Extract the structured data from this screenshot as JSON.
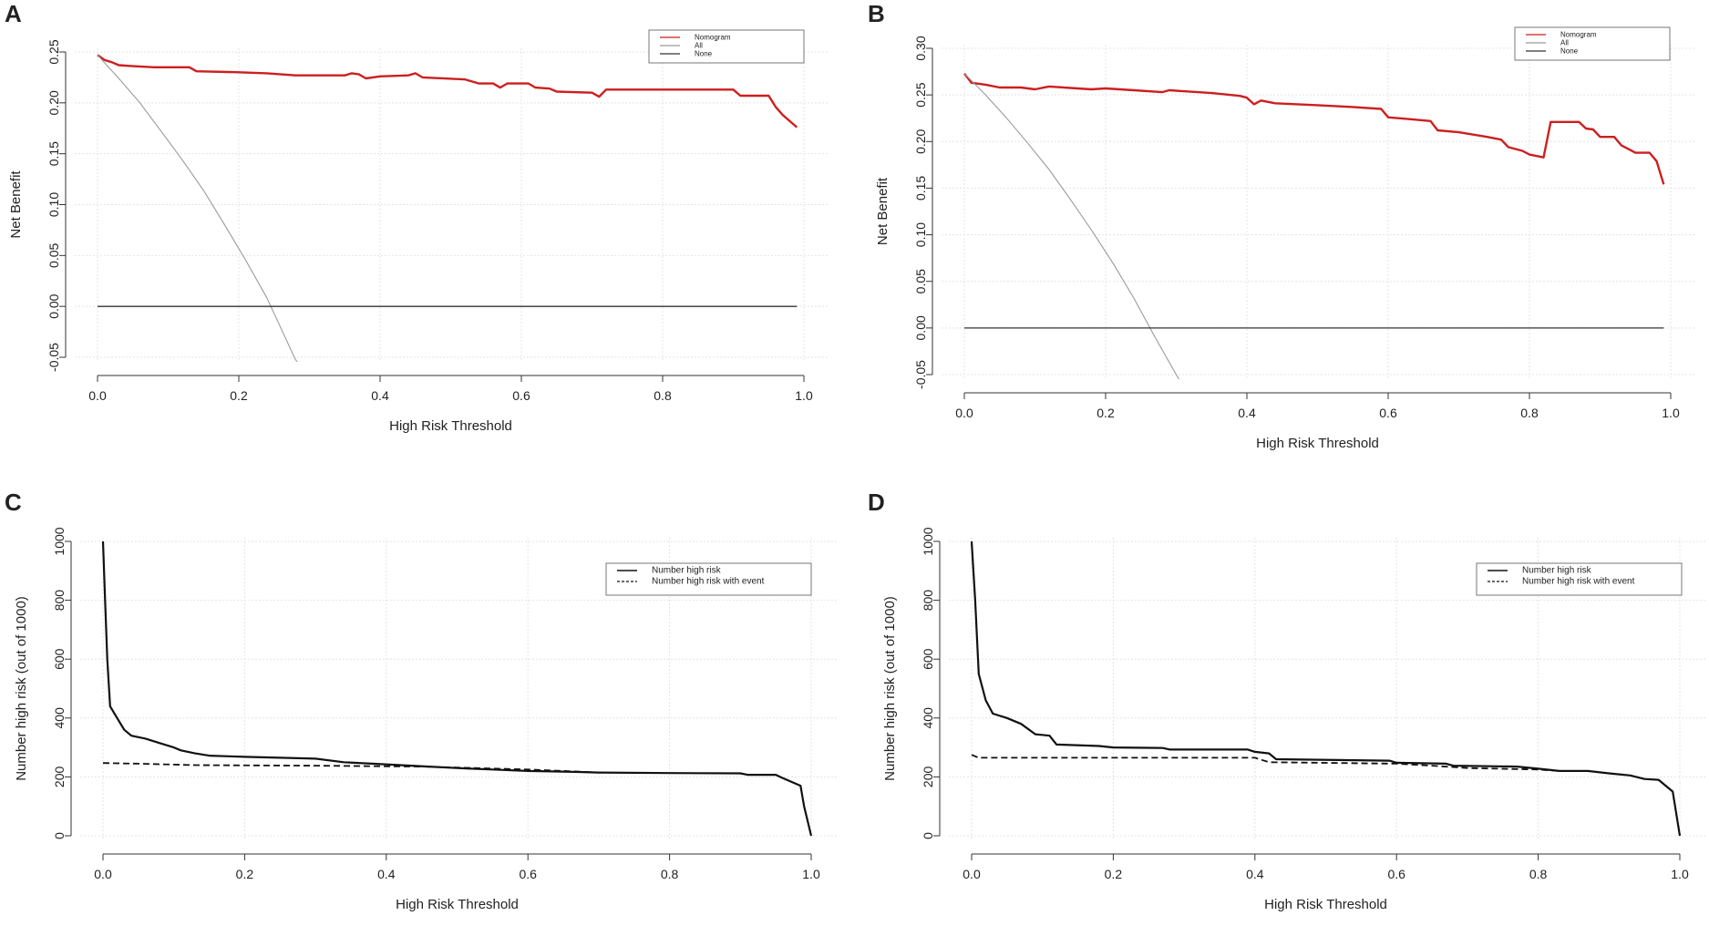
{
  "colors": {
    "nomogram": "#cc1f1f",
    "all": "#9a9a9a",
    "none": "#333333",
    "axis": "#333333",
    "grid": "#e4e4e4",
    "black": "#111111"
  },
  "chart_data": [
    {
      "panel": "A",
      "type": "line",
      "xlabel": "High Risk Threshold",
      "ylabel": "Net Benefit",
      "xlim": [
        0,
        1
      ],
      "ylim": [
        -0.05,
        0.25
      ],
      "xticks": [
        "0.0",
        "0.2",
        "0.4",
        "0.6",
        "0.8",
        "1.0"
      ],
      "yticks": [
        "-0.05",
        "0.00",
        "0.05",
        "0.10",
        "0.15",
        "0.20",
        "0.25"
      ],
      "legend": {
        "position": "top-right",
        "entries": [
          "Nomogram",
          "All",
          "None"
        ]
      },
      "series": [
        {
          "name": "Nomogram",
          "color": "red",
          "points": [
            [
              0,
              0.247
            ],
            [
              0.01,
              0.242
            ],
            [
              0.02,
              0.24
            ],
            [
              0.03,
              0.237
            ],
            [
              0.05,
              0.236
            ],
            [
              0.08,
              0.235
            ],
            [
              0.13,
              0.235
            ],
            [
              0.14,
              0.231
            ],
            [
              0.2,
              0.23
            ],
            [
              0.24,
              0.229
            ],
            [
              0.28,
              0.227
            ],
            [
              0.35,
              0.227
            ],
            [
              0.36,
              0.229
            ],
            [
              0.37,
              0.228
            ],
            [
              0.38,
              0.224
            ],
            [
              0.4,
              0.226
            ],
            [
              0.44,
              0.227
            ],
            [
              0.45,
              0.229
            ],
            [
              0.46,
              0.225
            ],
            [
              0.52,
              0.223
            ],
            [
              0.53,
              0.221
            ],
            [
              0.54,
              0.219
            ],
            [
              0.56,
              0.219
            ],
            [
              0.57,
              0.215
            ],
            [
              0.58,
              0.219
            ],
            [
              0.61,
              0.219
            ],
            [
              0.62,
              0.215
            ],
            [
              0.64,
              0.214
            ],
            [
              0.65,
              0.211
            ],
            [
              0.7,
              0.21
            ],
            [
              0.71,
              0.206
            ],
            [
              0.72,
              0.213
            ],
            [
              0.9,
              0.213
            ],
            [
              0.91,
              0.207
            ],
            [
              0.95,
              0.207
            ],
            [
              0.96,
              0.196
            ],
            [
              0.97,
              0.188
            ],
            [
              0.99,
              0.176
            ]
          ]
        },
        {
          "name": "All",
          "color": "gray",
          "points": [
            [
              0,
              0.247
            ],
            [
              0.03,
              0.224
            ],
            [
              0.06,
              0.2
            ],
            [
              0.09,
              0.172
            ],
            [
              0.12,
              0.144
            ],
            [
              0.15,
              0.114
            ],
            [
              0.18,
              0.08
            ],
            [
              0.21,
              0.045
            ],
            [
              0.24,
              0.008
            ],
            [
              0.26,
              -0.022
            ],
            [
              0.28,
              -0.052
            ],
            [
              0.29,
              -0.062
            ]
          ]
        },
        {
          "name": "None",
          "color": "black",
          "points": [
            [
              0,
              0
            ],
            [
              0.99,
              0
            ]
          ]
        }
      ]
    },
    {
      "panel": "B",
      "type": "line",
      "xlabel": "High Risk Threshold",
      "ylabel": "Net Benefit",
      "xlim": [
        0,
        1
      ],
      "ylim": [
        -0.05,
        0.3
      ],
      "xticks": [
        "0.0",
        "0.2",
        "0.4",
        "0.6",
        "0.8",
        "1.0"
      ],
      "yticks": [
        "-0.05",
        "0.00",
        "0.05",
        "0.10",
        "0.15",
        "0.20",
        "0.25",
        "0.30"
      ],
      "legend": {
        "position": "top-right",
        "entries": [
          "Nomogram",
          "All",
          "None"
        ]
      },
      "series": [
        {
          "name": "Nomogram",
          "color": "red",
          "points": [
            [
              0,
              0.273
            ],
            [
              0.01,
              0.263
            ],
            [
              0.03,
              0.261
            ],
            [
              0.05,
              0.258
            ],
            [
              0.08,
              0.258
            ],
            [
              0.1,
              0.256
            ],
            [
              0.12,
              0.259
            ],
            [
              0.16,
              0.257
            ],
            [
              0.18,
              0.256
            ],
            [
              0.2,
              0.257
            ],
            [
              0.24,
              0.255
            ],
            [
              0.28,
              0.253
            ],
            [
              0.29,
              0.255
            ],
            [
              0.31,
              0.254
            ],
            [
              0.35,
              0.252
            ],
            [
              0.39,
              0.249
            ],
            [
              0.4,
              0.247
            ],
            [
              0.41,
              0.24
            ],
            [
              0.42,
              0.244
            ],
            [
              0.44,
              0.241
            ],
            [
              0.5,
              0.239
            ],
            [
              0.55,
              0.237
            ],
            [
              0.59,
              0.235
            ],
            [
              0.6,
              0.226
            ],
            [
              0.63,
              0.224
            ],
            [
              0.66,
              0.222
            ],
            [
              0.67,
              0.212
            ],
            [
              0.7,
              0.21
            ],
            [
              0.74,
              0.205
            ],
            [
              0.76,
              0.202
            ],
            [
              0.77,
              0.194
            ],
            [
              0.79,
              0.19
            ],
            [
              0.8,
              0.186
            ],
            [
              0.82,
              0.183
            ],
            [
              0.83,
              0.221
            ],
            [
              0.87,
              0.221
            ],
            [
              0.88,
              0.214
            ],
            [
              0.89,
              0.213
            ],
            [
              0.9,
              0.205
            ],
            [
              0.92,
              0.205
            ],
            [
              0.93,
              0.196
            ],
            [
              0.95,
              0.188
            ],
            [
              0.97,
              0.188
            ],
            [
              0.98,
              0.179
            ],
            [
              0.99,
              0.154
            ]
          ]
        },
        {
          "name": "All",
          "color": "gray",
          "points": [
            [
              0,
              0.273
            ],
            [
              0.03,
              0.25
            ],
            [
              0.06,
              0.225
            ],
            [
              0.09,
              0.198
            ],
            [
              0.12,
              0.17
            ],
            [
              0.15,
              0.138
            ],
            [
              0.18,
              0.105
            ],
            [
              0.21,
              0.07
            ],
            [
              0.24,
              0.032
            ],
            [
              0.27,
              -0.01
            ],
            [
              0.3,
              -0.05
            ],
            [
              0.315,
              -0.07
            ]
          ]
        },
        {
          "name": "None",
          "color": "black",
          "points": [
            [
              0,
              0
            ],
            [
              0.99,
              0
            ]
          ]
        }
      ]
    },
    {
      "panel": "C",
      "type": "line",
      "xlabel": "High Risk Threshold",
      "ylabel": "Number high risk (out of 1000)",
      "xlim": [
        0,
        1
      ],
      "ylim": [
        0,
        1000
      ],
      "xticks": [
        "0.0",
        "0.2",
        "0.4",
        "0.6",
        "0.8",
        "1.0"
      ],
      "yticks": [
        "0",
        "200",
        "400",
        "600",
        "800",
        "1000"
      ],
      "legend": {
        "position": "top-right",
        "entries": [
          "Number high risk",
          "Number high risk with event"
        ]
      },
      "series": [
        {
          "name": "Number high risk",
          "style": "solid",
          "points": [
            [
              0,
              1000
            ],
            [
              0.003,
              800
            ],
            [
              0.006,
              600
            ],
            [
              0.01,
              440
            ],
            [
              0.02,
              400
            ],
            [
              0.03,
              360
            ],
            [
              0.04,
              340
            ],
            [
              0.06,
              330
            ],
            [
              0.08,
              315
            ],
            [
              0.1,
              300
            ],
            [
              0.11,
              290
            ],
            [
              0.13,
              280
            ],
            [
              0.15,
              272
            ],
            [
              0.2,
              268
            ],
            [
              0.25,
              265
            ],
            [
              0.3,
              262
            ],
            [
              0.34,
              250
            ],
            [
              0.38,
              245
            ],
            [
              0.42,
              240
            ],
            [
              0.46,
              235
            ],
            [
              0.5,
              230
            ],
            [
              0.55,
              225
            ],
            [
              0.6,
              220
            ],
            [
              0.65,
              218
            ],
            [
              0.7,
              215
            ],
            [
              0.8,
              213
            ],
            [
              0.9,
              212
            ],
            [
              0.91,
              207
            ],
            [
              0.95,
              207
            ],
            [
              0.96,
              196
            ],
            [
              0.985,
              170
            ],
            [
              0.99,
              100
            ],
            [
              1,
              0
            ]
          ]
        },
        {
          "name": "Number high risk with event",
          "style": "dashed",
          "points": [
            [
              0,
              247
            ],
            [
              0.05,
              245
            ],
            [
              0.13,
              240
            ],
            [
              0.3,
              238
            ],
            [
              0.45,
              235
            ],
            [
              0.6,
              225
            ],
            [
              0.65,
              220
            ],
            [
              0.7,
              215
            ]
          ]
        }
      ]
    },
    {
      "panel": "D",
      "type": "line",
      "xlabel": "High Risk Threshold",
      "ylabel": "Number high risk (out of 1000)",
      "xlim": [
        0,
        1
      ],
      "ylim": [
        0,
        1000
      ],
      "xticks": [
        "0.0",
        "0.2",
        "0.4",
        "0.6",
        "0.8",
        "1.0"
      ],
      "yticks": [
        "0",
        "200",
        "400",
        "600",
        "800",
        "1000"
      ],
      "legend": {
        "position": "top-right",
        "entries": [
          "Number high risk",
          "Number high risk with event"
        ]
      },
      "series": [
        {
          "name": "Number high risk",
          "style": "solid",
          "points": [
            [
              0,
              1000
            ],
            [
              0.005,
              800
            ],
            [
              0.01,
              550
            ],
            [
              0.02,
              460
            ],
            [
              0.03,
              415
            ],
            [
              0.05,
              400
            ],
            [
              0.07,
              380
            ],
            [
              0.09,
              345
            ],
            [
              0.11,
              340
            ],
            [
              0.12,
              310
            ],
            [
              0.18,
              305
            ],
            [
              0.2,
              300
            ],
            [
              0.27,
              298
            ],
            [
              0.28,
              293
            ],
            [
              0.39,
              293
            ],
            [
              0.4,
              285
            ],
            [
              0.42,
              280
            ],
            [
              0.43,
              260
            ],
            [
              0.59,
              255
            ],
            [
              0.6,
              248
            ],
            [
              0.67,
              245
            ],
            [
              0.68,
              238
            ],
            [
              0.77,
              235
            ],
            [
              0.8,
              228
            ],
            [
              0.83,
              220
            ],
            [
              0.87,
              220
            ],
            [
              0.9,
              212
            ],
            [
              0.93,
              205
            ],
            [
              0.95,
              193
            ],
            [
              0.97,
              190
            ],
            [
              0.99,
              150
            ],
            [
              1,
              0
            ]
          ]
        },
        {
          "name": "Number high risk with event",
          "style": "dashed",
          "points": [
            [
              0,
              275
            ],
            [
              0.01,
              265
            ],
            [
              0.4,
              265
            ],
            [
              0.42,
              250
            ],
            [
              0.6,
              245
            ],
            [
              0.65,
              238
            ],
            [
              0.7,
              230
            ],
            [
              0.8,
              225
            ],
            [
              0.83,
              220
            ]
          ]
        }
      ]
    }
  ]
}
